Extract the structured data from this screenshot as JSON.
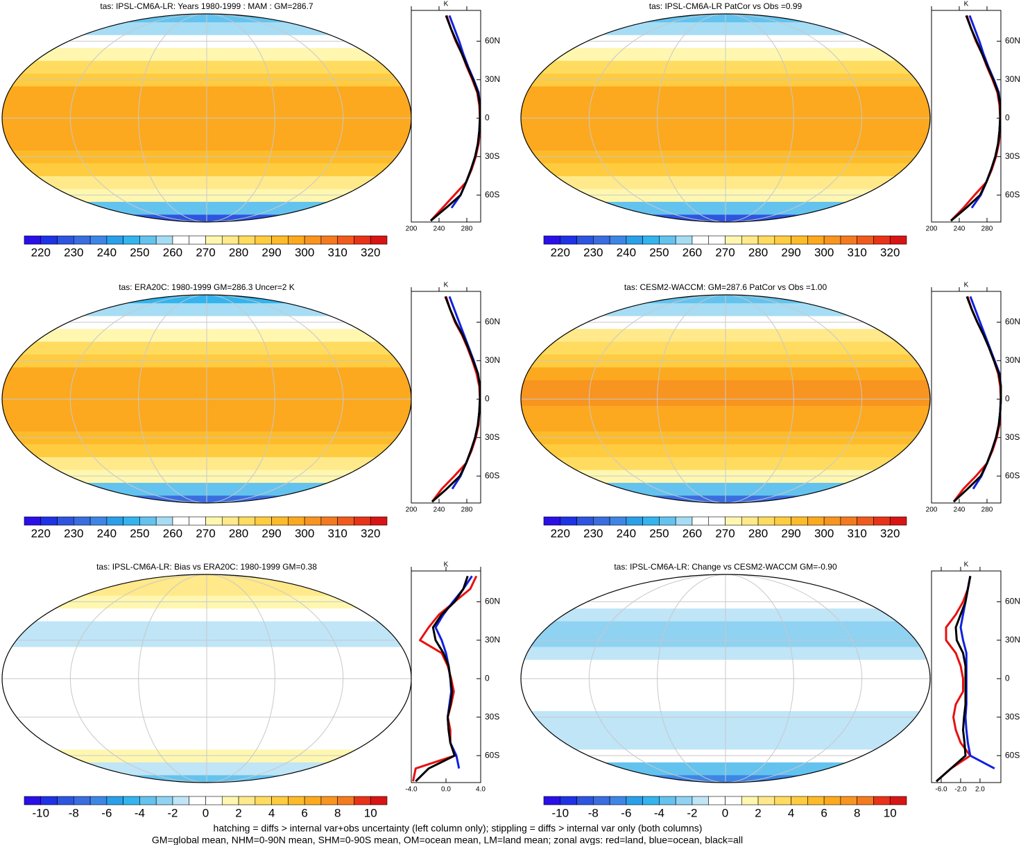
{
  "chart_data": [
    {
      "type": "map",
      "title": "tas: IPSL-CM6A-LR: Years 1980-1999 : MAM : GM=286.7",
      "clim": [
        215,
        325
      ],
      "ticks": [
        220,
        230,
        240,
        250,
        260,
        270,
        280,
        290,
        300,
        310,
        320
      ],
      "colors": [
        "#2a0fe8",
        "#1e32e6",
        "#2d55e0",
        "#3a6ee0",
        "#3d86e6",
        "#2aa0ea",
        "#33b4ee",
        "#64c3ee",
        "#a6dcf4",
        "#ffffff",
        "#ffffff",
        "#fff7b0",
        "#ffe98a",
        "#ffdb60",
        "#ffcc40",
        "#fdbb2a",
        "#fca91f",
        "#f89420",
        "#f47a1f",
        "#f05a1c",
        "#e83318",
        "#d91414"
      ]
    },
    {
      "type": "line",
      "x_label": "K",
      "xlim": [
        200,
        300
      ],
      "xticks": [
        200,
        240,
        280
      ],
      "ylim": [
        -81,
        84
      ],
      "yticks": [
        {
          "value": 60,
          "label": "60N"
        },
        {
          "value": 30,
          "label": "30N"
        },
        0,
        {
          "value": -30,
          "label": "30S"
        },
        {
          "value": -60,
          "label": "60S"
        }
      ],
      "y": [
        -80,
        -70,
        -60,
        -50,
        -40,
        -30,
        -20,
        -10,
        0,
        10,
        20,
        30,
        40,
        50,
        60,
        70,
        80
      ],
      "series": [
        {
          "color": "#e81010",
          "values": [
            228,
            245,
            262,
            279,
            287,
            293,
            297,
            299,
            299,
            298,
            295,
            288,
            280,
            273,
            264,
            257,
            251
          ]
        },
        {
          "color": "#1020e0",
          "values": [
            null,
            258,
            271,
            279,
            286,
            292,
            296,
            298,
            299,
            299,
            297,
            290,
            282,
            275,
            269,
            262,
            255
          ]
        },
        {
          "color": "#000000",
          "values": [
            228,
            250,
            271,
            279,
            286,
            292,
            296,
            298,
            299,
            299,
            296,
            289,
            281,
            273,
            265,
            257,
            250
          ]
        }
      ]
    },
    {
      "type": "map",
      "title": "tas: IPSL-CM6A-LR PatCor vs Obs =0.99",
      "clim": [
        215,
        325
      ],
      "ticks": [
        220,
        230,
        240,
        250,
        260,
        270,
        280,
        290,
        300,
        310,
        320
      ],
      "colors": [
        "#2a0fe8",
        "#1e32e6",
        "#2d55e0",
        "#3a6ee0",
        "#3d86e6",
        "#2aa0ea",
        "#33b4ee",
        "#64c3ee",
        "#a6dcf4",
        "#ffffff",
        "#ffffff",
        "#fff7b0",
        "#ffe98a",
        "#ffdb60",
        "#ffcc40",
        "#fdbb2a",
        "#fca91f",
        "#f89420",
        "#f47a1f",
        "#f05a1c",
        "#e83318",
        "#d91414"
      ]
    },
    {
      "type": "line",
      "x_label": "K",
      "xlim": [
        200,
        300
      ],
      "xticks": [
        200,
        240,
        280
      ],
      "ylim": [
        -81,
        84
      ],
      "yticks": [
        {
          "value": 60,
          "label": "60N"
        },
        {
          "value": 30,
          "label": "30N"
        },
        0,
        {
          "value": -30,
          "label": "30S"
        },
        {
          "value": -60,
          "label": "60S"
        }
      ],
      "y": [
        -80,
        -70,
        -60,
        -50,
        -40,
        -30,
        -20,
        -10,
        0,
        10,
        20,
        30,
        40,
        50,
        60,
        70,
        80
      ],
      "series": [
        {
          "color": "#e81010",
          "values": [
            228,
            246,
            262,
            279,
            287,
            293,
            297,
            299,
            299,
            298,
            295,
            288,
            280,
            273,
            264,
            257,
            251
          ]
        },
        {
          "color": "#1020e0",
          "values": [
            null,
            258,
            271,
            279,
            286,
            292,
            296,
            298,
            299,
            299,
            297,
            290,
            282,
            275,
            269,
            262,
            255
          ]
        },
        {
          "color": "#000000",
          "values": [
            228,
            250,
            270,
            279,
            286,
            292,
            296,
            298,
            299,
            299,
            296,
            289,
            281,
            273,
            265,
            257,
            250
          ]
        }
      ]
    },
    {
      "type": "map",
      "title": "tas: ERA20C: 1980-1999 GM=286.3 Uncer=2 K",
      "clim": [
        215,
        325
      ],
      "ticks": [
        220,
        230,
        240,
        250,
        260,
        270,
        280,
        290,
        300,
        310,
        320
      ],
      "colors": [
        "#2a0fe8",
        "#1e32e6",
        "#2d55e0",
        "#3a6ee0",
        "#3d86e6",
        "#2aa0ea",
        "#33b4ee",
        "#64c3ee",
        "#a6dcf4",
        "#ffffff",
        "#ffffff",
        "#fff7b0",
        "#ffe98a",
        "#ffdb60",
        "#ffcc40",
        "#fdbb2a",
        "#fca91f",
        "#f89420",
        "#f47a1f",
        "#f05a1c",
        "#e83318",
        "#d91414"
      ]
    },
    {
      "type": "line",
      "x_label": "K",
      "xlim": [
        200,
        300
      ],
      "xticks": [
        200,
        240,
        280
      ],
      "ylim": [
        -81,
        84
      ],
      "yticks": [
        {
          "value": 60,
          "label": "60N"
        },
        {
          "value": 30,
          "label": "30N"
        },
        0,
        {
          "value": -30,
          "label": "30S"
        },
        {
          "value": -60,
          "label": "60S"
        }
      ],
      "y": [
        -80,
        -70,
        -60,
        -50,
        -40,
        -30,
        -20,
        -10,
        0,
        10,
        20,
        30,
        40,
        50,
        60,
        70,
        80
      ],
      "series": [
        {
          "color": "#e81010",
          "values": [
            230,
            244,
            262,
            279,
            287,
            293,
            297,
            298,
            299,
            298,
            294,
            288,
            281,
            273,
            263,
            256,
            250
          ]
        },
        {
          "color": "#1020e0",
          "values": [
            null,
            259,
            271,
            279,
            286,
            292,
            296,
            298,
            299,
            299,
            296,
            290,
            283,
            276,
            269,
            262,
            255
          ]
        },
        {
          "color": "#000000",
          "values": [
            230,
            251,
            270,
            279,
            286,
            292,
            296,
            298,
            299,
            299,
            296,
            289,
            282,
            274,
            264,
            256,
            249
          ]
        }
      ]
    },
    {
      "type": "map",
      "title": "tas: CESM2-WACCM: GM=287.6 PatCor vs Obs =1.00",
      "clim": [
        215,
        325
      ],
      "ticks": [
        220,
        230,
        240,
        250,
        260,
        270,
        280,
        290,
        300,
        310,
        320
      ],
      "colors": [
        "#2a0fe8",
        "#1e32e6",
        "#2d55e0",
        "#3a6ee0",
        "#3d86e6",
        "#2aa0ea",
        "#33b4ee",
        "#64c3ee",
        "#a6dcf4",
        "#ffffff",
        "#ffffff",
        "#fff7b0",
        "#ffe98a",
        "#ffdb60",
        "#ffcc40",
        "#fdbb2a",
        "#fca91f",
        "#f89420",
        "#f47a1f",
        "#f05a1c",
        "#e83318",
        "#d91414"
      ]
    },
    {
      "type": "line",
      "x_label": "K",
      "xlim": [
        200,
        300
      ],
      "xticks": [
        200,
        240,
        280
      ],
      "ylim": [
        -81,
        84
      ],
      "yticks": [
        {
          "value": 60,
          "label": "60N"
        },
        {
          "value": 30,
          "label": "30N"
        },
        0,
        {
          "value": -30,
          "label": "30S"
        },
        {
          "value": -60,
          "label": "60S"
        }
      ],
      "y": [
        -80,
        -70,
        -60,
        -50,
        -40,
        -30,
        -20,
        -10,
        0,
        10,
        20,
        30,
        40,
        50,
        60,
        70,
        80
      ],
      "series": [
        {
          "color": "#e81010",
          "values": [
            232,
            246,
            264,
            280,
            288,
            294,
            298,
            299,
            300,
            299,
            296,
            290,
            283,
            275,
            266,
            258,
            252
          ]
        },
        {
          "color": "#1020e0",
          "values": [
            null,
            260,
            272,
            280,
            287,
            293,
            297,
            299,
            300,
            300,
            298,
            291,
            284,
            277,
            270,
            263,
            256
          ]
        },
        {
          "color": "#000000",
          "values": [
            232,
            252,
            271,
            280,
            287,
            293,
            297,
            299,
            300,
            300,
            297,
            290,
            283,
            275,
            266,
            258,
            251
          ]
        }
      ]
    },
    {
      "type": "map",
      "title": "tas: IPSL-CM6A-LR: Bias vs ERA20C: 1980-1999 GM=0.38",
      "clim": [
        -11,
        11
      ],
      "ticks": [
        -10,
        -8,
        -6,
        -4,
        -2,
        0,
        2,
        4,
        6,
        8,
        10
      ],
      "colors": [
        "#2a0fe8",
        "#1e32e6",
        "#2d55e0",
        "#3a6ee0",
        "#3d86e6",
        "#2aa0ea",
        "#33b4ee",
        "#64c3ee",
        "#8fd2f2",
        "#bfe5f7",
        "#ffffff",
        "#ffffff",
        "#fff7b0",
        "#ffe98a",
        "#ffdb60",
        "#ffcc40",
        "#fdbb2a",
        "#fca91f",
        "#f89420",
        "#f47a1f",
        "#e83318",
        "#d91414"
      ]
    },
    {
      "type": "line",
      "x_label": "K",
      "xlim": [
        -4,
        4
      ],
      "xticks": [
        {
          "value": -4,
          "label": "-4.0"
        },
        {
          "value": 0,
          "label": "0.0"
        },
        {
          "value": 4,
          "label": "4.0"
        }
      ],
      "ylim": [
        -81,
        84
      ],
      "yticks": [
        {
          "value": 60,
          "label": "60N"
        },
        {
          "value": 30,
          "label": "30N"
        },
        0,
        {
          "value": -30,
          "label": "30S"
        },
        {
          "value": -60,
          "label": "60S"
        }
      ],
      "y": [
        -80,
        -70,
        -60,
        -50,
        -40,
        -30,
        -20,
        -10,
        0,
        10,
        20,
        30,
        40,
        50,
        60,
        70,
        80
      ],
      "series": [
        {
          "color": "#e81010",
          "values": [
            -3.8,
            -3.5,
            1,
            0.5,
            0.5,
            0.2,
            0.6,
            0.9,
            0.6,
            0.2,
            -0.5,
            -3,
            -2,
            -0.8,
            1,
            2.8,
            3.5
          ]
        },
        {
          "color": "#1020e0",
          "values": [
            null,
            1.5,
            1.2,
            0.5,
            0.3,
            0.2,
            0.4,
            0.6,
            0.5,
            0.3,
            0,
            -0.5,
            -1.2,
            -0.3,
            0.8,
            2,
            3
          ]
        },
        {
          "color": "#000000",
          "values": [
            -3.5,
            -2,
            1,
            0.5,
            0.3,
            0.2,
            0.5,
            0.7,
            0.5,
            0.3,
            -0.3,
            -1.2,
            -1.5,
            -0.5,
            1,
            2,
            2.5
          ]
        }
      ]
    },
    {
      "type": "map",
      "title": "tas: IPSL-CM6A-LR: Change vs CESM2-WACCM GM=-0.90",
      "clim": [
        -11,
        11
      ],
      "ticks": [
        -10,
        -8,
        -6,
        -4,
        -2,
        0,
        2,
        4,
        6,
        8,
        10
      ],
      "colors": [
        "#2a0fe8",
        "#1e32e6",
        "#2d55e0",
        "#3a6ee0",
        "#3d86e6",
        "#2aa0ea",
        "#33b4ee",
        "#64c3ee",
        "#8fd2f2",
        "#bfe5f7",
        "#ffffff",
        "#ffffff",
        "#fff7b0",
        "#ffe98a",
        "#ffdb60",
        "#ffcc40",
        "#fdbb2a",
        "#fca91f",
        "#f89420",
        "#f47a1f",
        "#e83318",
        "#d91414"
      ]
    },
    {
      "type": "line",
      "x_label": "K",
      "xlim": [
        -8,
        6.3
      ],
      "xticks": [
        {
          "value": -6,
          "label": "-6.0"
        },
        {
          "value": -2,
          "label": "-2.0"
        },
        {
          "value": 2,
          "label": "2.0"
        }
      ],
      "ylim": [
        -81,
        84
      ],
      "yticks": [
        {
          "value": 60,
          "label": "60N"
        },
        {
          "value": 30,
          "label": "30N"
        },
        0,
        {
          "value": -30,
          "label": "30S"
        },
        {
          "value": -60,
          "label": "60S"
        }
      ],
      "y": [
        -80,
        -70,
        -60,
        -50,
        -40,
        -30,
        -20,
        -10,
        0,
        10,
        20,
        30,
        40,
        50,
        60,
        70,
        80
      ],
      "series": [
        {
          "color": "#e81010",
          "values": [
            -7,
            -4,
            0,
            -2,
            -3,
            -3.5,
            -3,
            -1.5,
            -1.5,
            -2,
            -3,
            -5,
            -5,
            -3,
            -1.5,
            -0.5,
            0
          ]
        },
        {
          "color": "#1020e0",
          "values": [
            null,
            5,
            0,
            -0.5,
            -0.8,
            -1,
            -0.8,
            -0.8,
            -0.8,
            -0.8,
            -0.8,
            -1.5,
            -2,
            -1.5,
            -1,
            -0.5,
            0
          ]
        },
        {
          "color": "#000000",
          "values": [
            -7,
            -4,
            -1,
            -1.2,
            -1.5,
            -1.3,
            -1,
            -1,
            -1,
            -1,
            -1.5,
            -2.8,
            -3,
            -2,
            -1,
            -0.5,
            0
          ]
        }
      ]
    }
  ],
  "footnote": [
    "hatching = diffs > internal var+obs uncertainty (left column only); stippling = diffs > internal var only (both columns)",
    "GM=global mean, NHM=0-90N mean, SHM=0-90S mean, OM=ocean mean, LM=land mean; zonal avgs: red=land, blue=ocean, black=all"
  ]
}
